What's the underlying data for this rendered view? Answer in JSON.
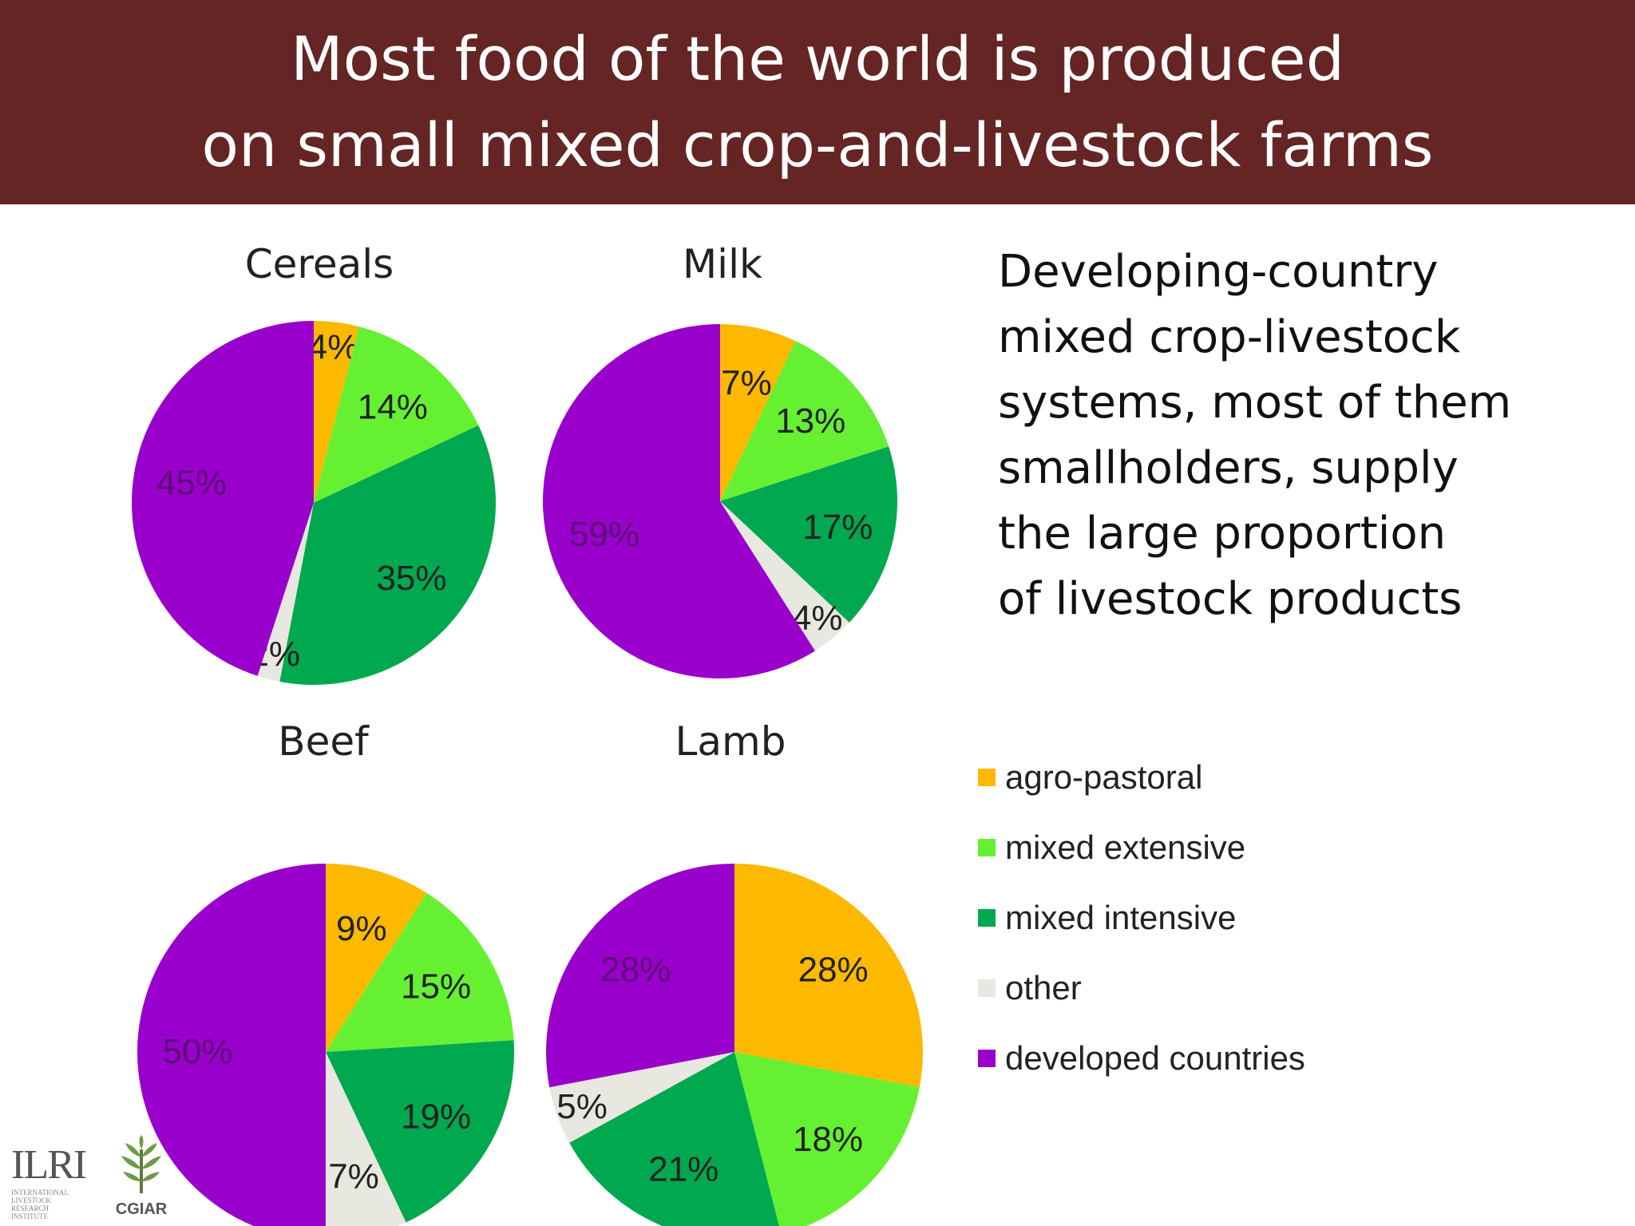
{
  "header": {
    "title_line1": "Most food of the world is produced",
    "title_line2": "on small mixed crop-and-livestock farms"
  },
  "side_text": [
    "Developing-country",
    "mixed crop-livestock",
    "systems, most of them",
    "smallholders, supply",
    "the large proportion",
    "of livestock products"
  ],
  "colors": {
    "header_bg": "#652525",
    "agro-pastoral": "#FCB900",
    "mixed extensive": "#66F032",
    "mixed intensive": "#00A84F",
    "other": "#E8E8E0",
    "developed countries": "#9900CC"
  },
  "legend": [
    {
      "label": "agro-pastoral",
      "color": "#FCB900"
    },
    {
      "label": "mixed extensive",
      "color": "#66F032"
    },
    {
      "label": "mixed intensive",
      "color": "#00A84F"
    },
    {
      "label": "other",
      "color": "#E8E8E0"
    },
    {
      "label": "developed countries",
      "color": "#9900CC"
    }
  ],
  "chart_data": [
    {
      "type": "pie",
      "title": "Cereals",
      "categories": [
        "agro-pastoral",
        "mixed extensive",
        "mixed intensive",
        "other",
        "developed countries"
      ],
      "values": [
        4,
        14,
        35,
        2,
        45
      ],
      "labels": [
        "4%",
        "14%",
        "35%",
        "2%",
        "45%"
      ]
    },
    {
      "type": "pie",
      "title": "Milk",
      "categories": [
        "agro-pastoral",
        "mixed extensive",
        "mixed intensive",
        "other",
        "developed countries"
      ],
      "values": [
        7,
        13,
        17,
        4,
        59
      ],
      "labels": [
        "7%",
        "13%",
        "17%",
        "4%",
        "59%"
      ]
    },
    {
      "type": "pie",
      "title": "Beef",
      "categories": [
        "agro-pastoral",
        "mixed extensive",
        "mixed intensive",
        "other",
        "developed countries"
      ],
      "values": [
        9,
        15,
        19,
        7,
        50
      ],
      "labels": [
        "9%",
        "15%",
        "19%",
        "7%",
        "50%"
      ]
    },
    {
      "type": "pie",
      "title": "Lamb",
      "categories": [
        "agro-pastoral",
        "mixed extensive",
        "mixed intensive",
        "other",
        "developed countries"
      ],
      "values": [
        28,
        18,
        21,
        5,
        28
      ],
      "labels": [
        "28%",
        "18%",
        "21%",
        "5%",
        "28%"
      ]
    }
  ],
  "logos": {
    "ilri": "ILRI",
    "ilri_sub": "INTERNATIONAL LIVESTOCK RESEARCH INSTITUTE",
    "cgiar": "CGIAR"
  }
}
